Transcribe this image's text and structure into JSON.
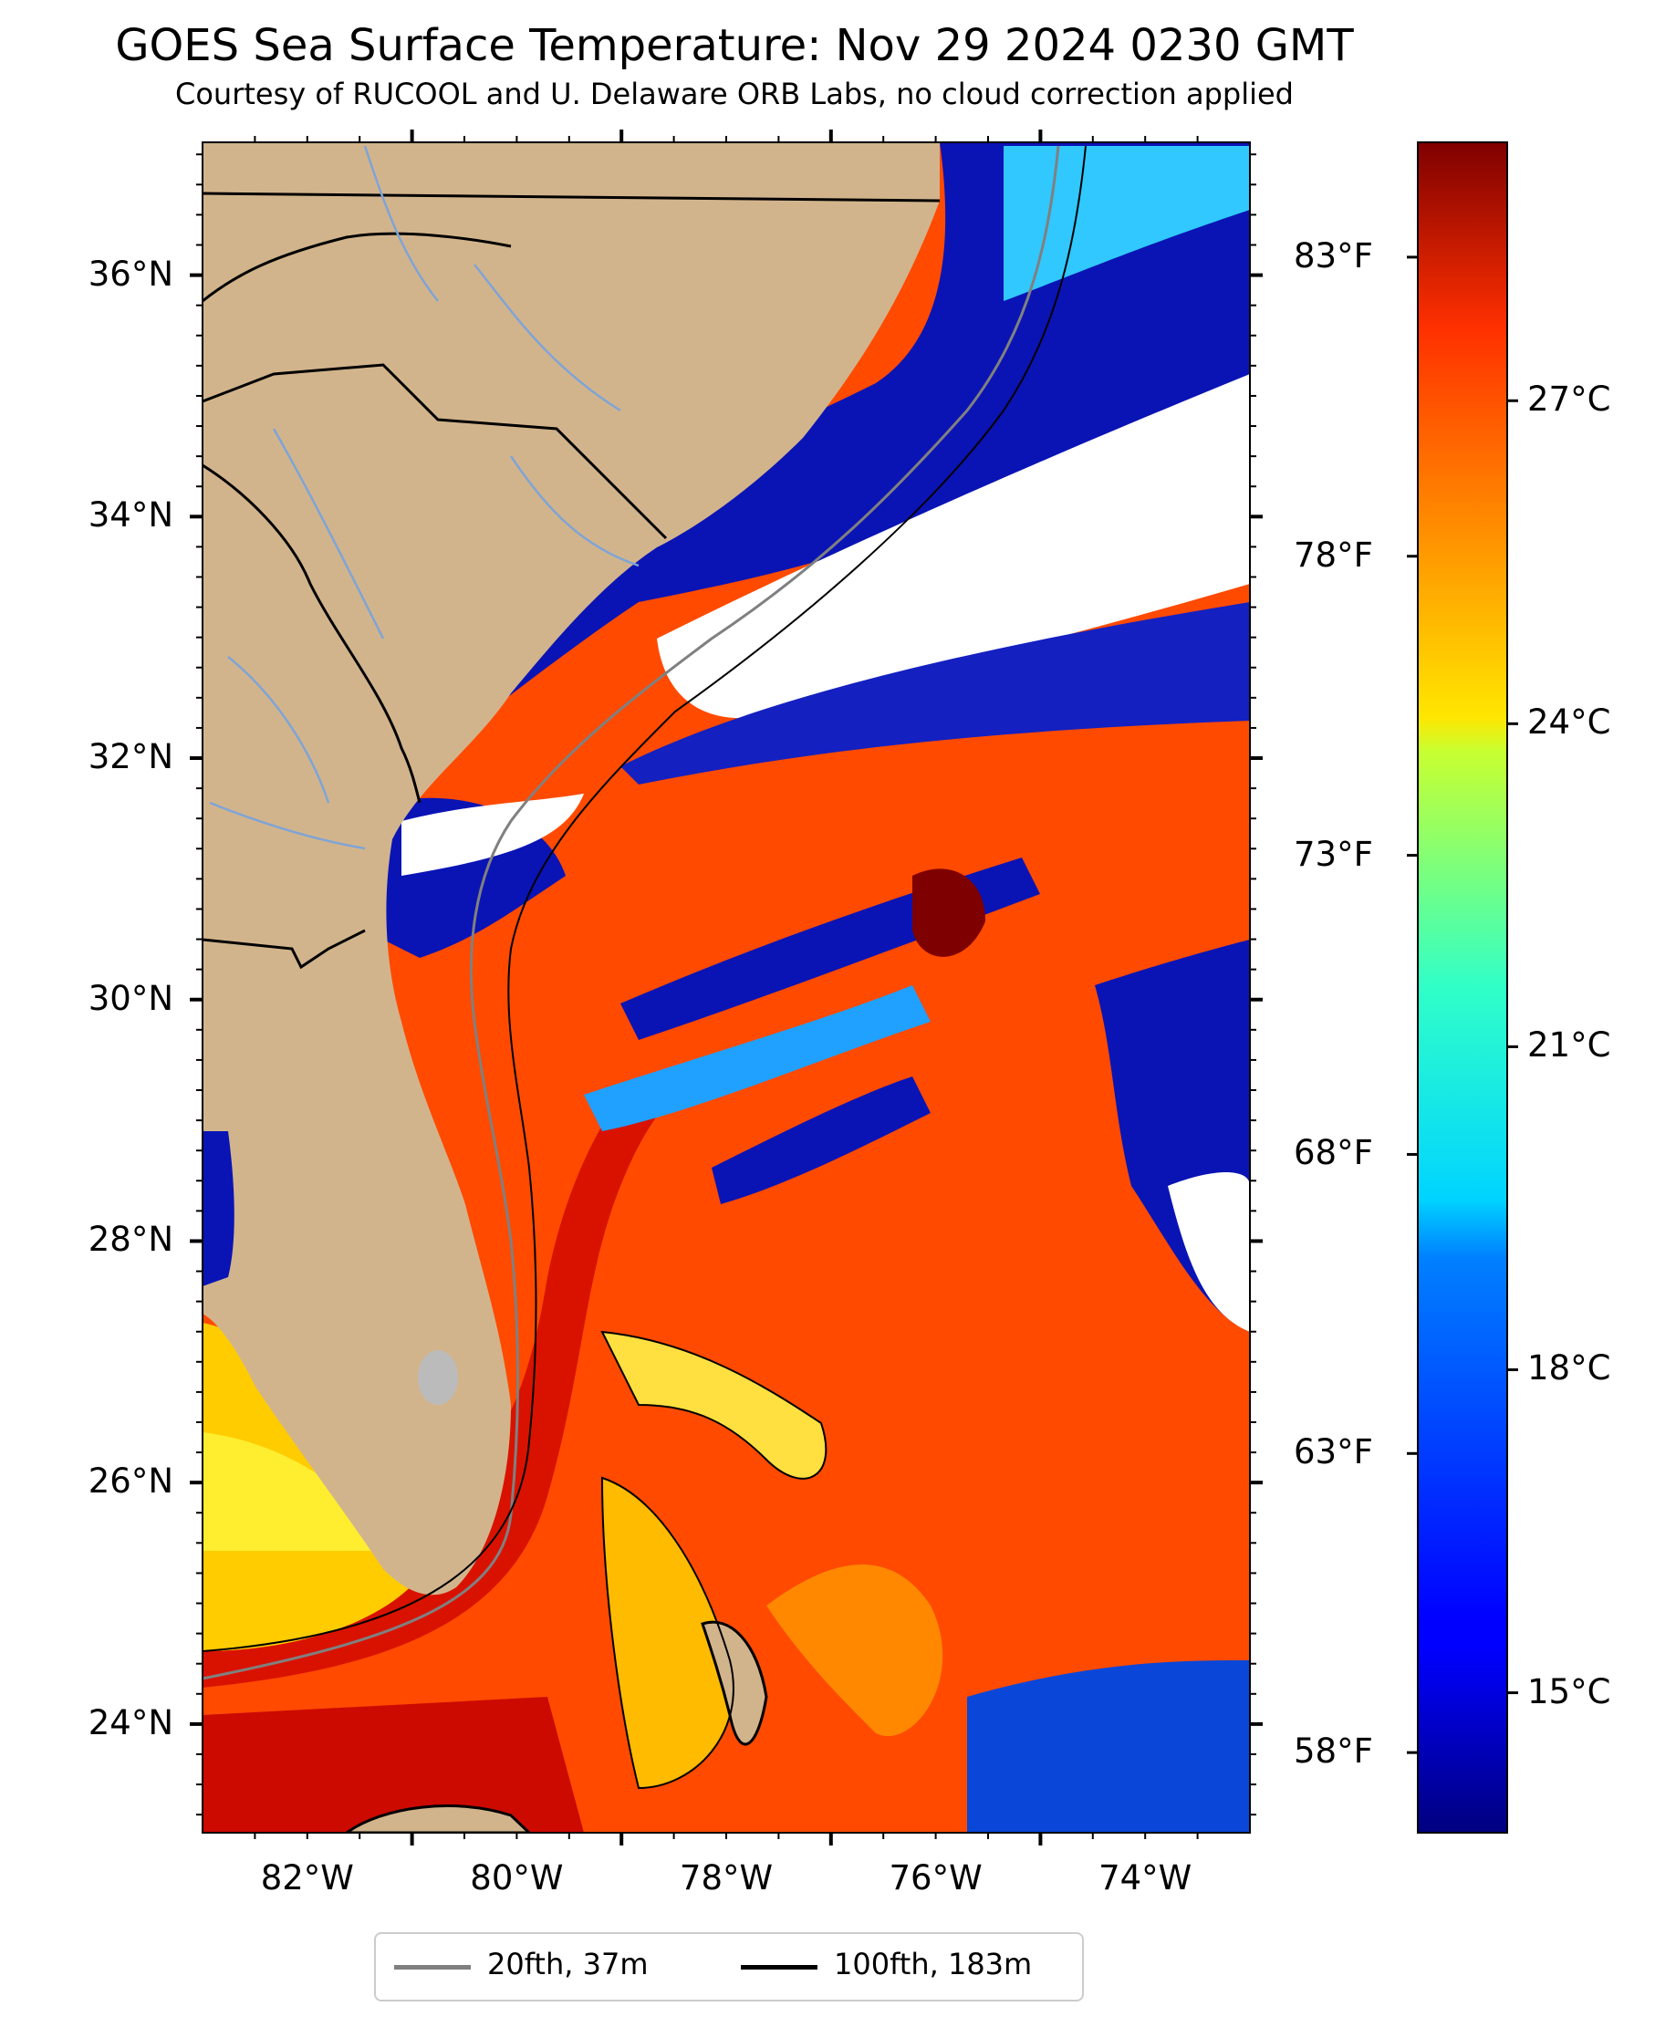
{
  "header": {
    "title": "GOES Sea Surface Temperature: Nov 29 2024 0230 GMT",
    "subtitle": "Courtesy of RUCOOL and U. Delaware ORB Labs, no cloud correction applied"
  },
  "map": {
    "lat_labels": [
      {
        "value": 36,
        "label": "36°N"
      },
      {
        "value": 34,
        "label": "34°N"
      },
      {
        "value": 32,
        "label": "32°N"
      },
      {
        "value": 30,
        "label": "30°N"
      },
      {
        "value": 28,
        "label": "28°N"
      },
      {
        "value": 26,
        "label": "26°N"
      },
      {
        "value": 24,
        "label": "24°N"
      }
    ],
    "lon_labels": [
      {
        "value": -82,
        "label": "82°W"
      },
      {
        "value": -80,
        "label": "80°W"
      },
      {
        "value": -78,
        "label": "78°W"
      },
      {
        "value": -76,
        "label": "76°W"
      },
      {
        "value": -74,
        "label": "74°W"
      }
    ],
    "extent": {
      "lon_min": -83,
      "lon_max": -73,
      "lat_min": 23.1,
      "lat_max": 37.1
    },
    "colors": {
      "land": "#d2b48c",
      "ocean_warm": "#ff4a00",
      "gulf_stream": "#e01000",
      "cool": "#0a14b4",
      "cloud": "#ffffff",
      "river": "#7fa4d6",
      "border": "#000000"
    }
  },
  "colorbar": {
    "colormap": "jet",
    "celsius_range": [
      13.7,
      29.4
    ],
    "celsius_ticks": [
      {
        "value": 27,
        "label": "27°C"
      },
      {
        "value": 24,
        "label": "24°C"
      },
      {
        "value": 21,
        "label": "21°C"
      },
      {
        "value": 18,
        "label": "18°C"
      },
      {
        "value": 15,
        "label": "15°C"
      }
    ],
    "fahrenheit_ticks": [
      {
        "value": 83,
        "label": "83°F"
      },
      {
        "value": 78,
        "label": "78°F"
      },
      {
        "value": 73,
        "label": "73°F"
      },
      {
        "value": 68,
        "label": "68°F"
      },
      {
        "value": 63,
        "label": "63°F"
      },
      {
        "value": 58,
        "label": "58°F"
      }
    ]
  },
  "legend": {
    "items": [
      {
        "label": "20fth, 37m",
        "color": "#808080"
      },
      {
        "label": "100fth, 183m",
        "color": "#000000"
      }
    ]
  }
}
